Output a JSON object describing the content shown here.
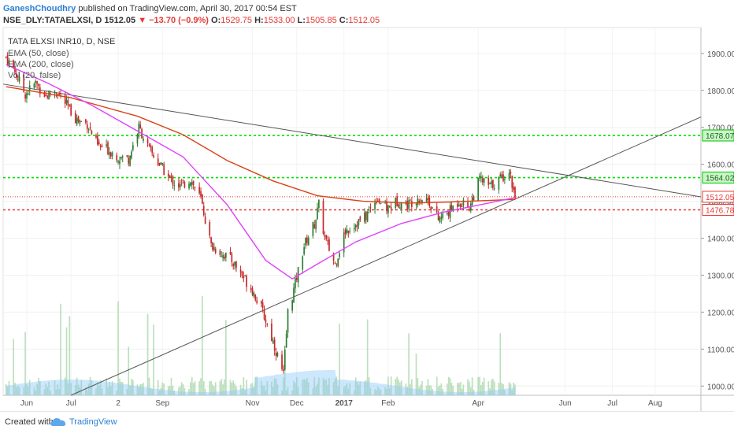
{
  "header": {
    "author": "GaneshChoudhry",
    "published": " published on TradingView.com, April 30, 2017 00:54 EST",
    "symbol": "NSE_DLY:TATAELXSI, D",
    "last": "1512.05",
    "change": "▼ −13.70 (−0.9%)",
    "o_label": "O:",
    "o": "1529.75",
    "h_label": "H:",
    "h": "1533.00",
    "l_label": "L:",
    "l": "1505.85",
    "c_label": "C:",
    "c": "1512.05"
  },
  "legend": {
    "title": "TATA ELXSI INR10, D, NSE",
    "ema50": "EMA (50, close)",
    "ema200": "EMA (200, close)",
    "vol": "Vol (20, false)"
  },
  "footer": {
    "created": "Created with",
    "brand": "TradingView"
  },
  "colors": {
    "up": "#2e7d32",
    "down": "#c62828",
    "ema50": "#e040fb",
    "ema200": "#d84315",
    "green_level": "#00e000",
    "red_level": "#e53935",
    "trendline": "#555555",
    "volume": "#a5d6a7",
    "volume_ma": "#90caf9"
  },
  "chart_data": {
    "type": "candlestick",
    "title": "TATA ELXSI INR10, D, NSE",
    "y_ticks": [
      1000,
      1100,
      1200,
      1300,
      1400,
      1500,
      1600,
      1700,
      1800,
      1900
    ],
    "y_tick_labels": [
      "1000.00",
      "1100.00",
      "1200.00",
      "1300.00",
      "1400.00",
      "1500.00",
      "1600.00",
      "1700.00",
      "1800.00",
      "1900.00"
    ],
    "ylim": [
      975,
      1970
    ],
    "x_tick_labels": [
      {
        "label": "Jun",
        "date": "2016-06-01"
      },
      {
        "label": "Jul",
        "date": "2016-07-01"
      },
      {
        "label": "2",
        "date": "2016-08-02"
      },
      {
        "label": "Sep",
        "date": "2016-09-01"
      },
      {
        "label": "Nov",
        "date": "2016-11-01"
      },
      {
        "label": "Dec",
        "date": "2016-12-01"
      },
      {
        "label": "2017",
        "date": "2017-01-02"
      },
      {
        "label": "Feb",
        "date": "2017-02-01"
      },
      {
        "label": "Apr",
        "date": "2017-04-03"
      },
      {
        "label": "Jun",
        "date": "2017-06-01"
      },
      {
        "label": "Jul",
        "date": "2017-07-03"
      },
      {
        "label": "Aug",
        "date": "2017-08-01"
      }
    ],
    "xlim": [
      "2016-05-16",
      "2017-09-01"
    ],
    "levels": [
      {
        "value": 1678.07,
        "label": "1678.07",
        "color": "#00e000"
      },
      {
        "value": 1564.02,
        "label": "1564.02",
        "color": "#00e000"
      },
      {
        "value": 1512.05,
        "label": "1512.05",
        "color": "#e53935"
      },
      {
        "value": 1476.78,
        "label": "1476.78",
        "color": "#e53935"
      }
    ],
    "trendlines": [
      {
        "from": [
          "2016-05-16",
          1817
        ],
        "to": [
          "2017-09-01",
          1512
        ]
      },
      {
        "from": [
          "2016-07-01",
          975
        ],
        "to": [
          "2017-09-01",
          1728
        ]
      }
    ],
    "close_path": [
      [
        "2016-05-18",
        1890
      ],
      [
        "2016-05-24",
        1850
      ],
      [
        "2016-05-31",
        1790
      ],
      [
        "2016-06-07",
        1820
      ],
      [
        "2016-06-14",
        1785
      ],
      [
        "2016-06-21",
        1800
      ],
      [
        "2016-06-28",
        1760
      ],
      [
        "2016-07-05",
        1720
      ],
      [
        "2016-07-12",
        1710
      ],
      [
        "2016-07-19",
        1650
      ],
      [
        "2016-07-26",
        1640
      ],
      [
        "2016-08-02",
        1620
      ],
      [
        "2016-08-09",
        1615
      ],
      [
        "2016-08-16",
        1700
      ],
      [
        "2016-08-23",
        1640
      ],
      [
        "2016-08-30",
        1600
      ],
      [
        "2016-09-06",
        1560
      ],
      [
        "2016-09-13",
        1540
      ],
      [
        "2016-09-20",
        1560
      ],
      [
        "2016-09-27",
        1505
      ],
      [
        "2016-10-04",
        1380
      ],
      [
        "2016-10-11",
        1360
      ],
      [
        "2016-10-18",
        1340
      ],
      [
        "2016-10-25",
        1300
      ],
      [
        "2016-11-01",
        1260
      ],
      [
        "2016-11-08",
        1200
      ],
      [
        "2016-11-15",
        1120
      ],
      [
        "2016-11-22",
        1030
      ],
      [
        "2016-11-25",
        1200
      ],
      [
        "2016-11-29",
        1260
      ],
      [
        "2016-12-06",
        1380
      ],
      [
        "2016-12-13",
        1440
      ],
      [
        "2016-12-16",
        1490
      ],
      [
        "2016-12-20",
        1400
      ],
      [
        "2016-12-27",
        1330
      ],
      [
        "2017-01-03",
        1420
      ],
      [
        "2017-01-10",
        1440
      ],
      [
        "2017-01-17",
        1460
      ],
      [
        "2017-01-24",
        1510
      ],
      [
        "2017-01-31",
        1480
      ],
      [
        "2017-02-07",
        1500
      ],
      [
        "2017-02-14",
        1490
      ],
      [
        "2017-02-21",
        1510
      ],
      [
        "2017-02-28",
        1505
      ],
      [
        "2017-03-07",
        1450
      ],
      [
        "2017-03-14",
        1470
      ],
      [
        "2017-03-21",
        1500
      ],
      [
        "2017-03-28",
        1485
      ],
      [
        "2017-04-04",
        1560
      ],
      [
        "2017-04-11",
        1540
      ],
      [
        "2017-04-18",
        1560
      ],
      [
        "2017-04-24",
        1585
      ],
      [
        "2017-04-28",
        1512
      ]
    ],
    "ema50_path": [
      [
        "2016-05-18",
        1870
      ],
      [
        "2016-06-15",
        1820
      ],
      [
        "2016-07-15",
        1760
      ],
      [
        "2016-08-15",
        1690
      ],
      [
        "2016-09-15",
        1620
      ],
      [
        "2016-10-15",
        1490
      ],
      [
        "2016-11-10",
        1340
      ],
      [
        "2016-11-28",
        1290
      ],
      [
        "2016-12-15",
        1330
      ],
      [
        "2017-01-10",
        1390
      ],
      [
        "2017-02-10",
        1440
      ],
      [
        "2017-03-10",
        1470
      ],
      [
        "2017-04-10",
        1495
      ],
      [
        "2017-04-28",
        1510
      ]
    ],
    "ema200_path": [
      [
        "2016-05-18",
        1810
      ],
      [
        "2016-07-01",
        1780
      ],
      [
        "2016-08-15",
        1730
      ],
      [
        "2016-09-15",
        1680
      ],
      [
        "2016-10-15",
        1610
      ],
      [
        "2016-11-15",
        1555
      ],
      [
        "2016-12-15",
        1515
      ],
      [
        "2017-01-15",
        1500
      ],
      [
        "2017-02-15",
        1495
      ],
      [
        "2017-03-15",
        1498
      ],
      [
        "2017-04-28",
        1505
      ]
    ]
  }
}
